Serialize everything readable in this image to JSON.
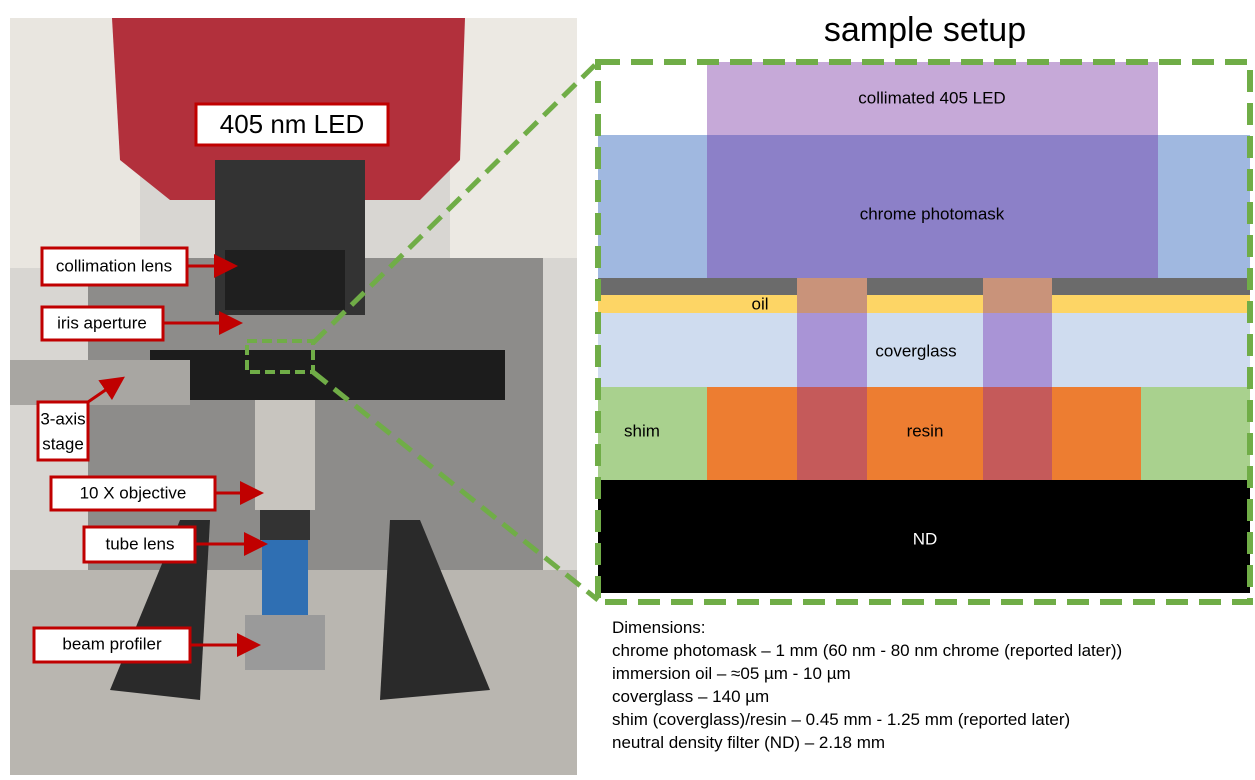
{
  "title": "sample setup",
  "photo_labels": {
    "led": "405 nm LED",
    "collimation": "collimation lens",
    "iris": "iris aperture",
    "stage_1": "3-axis",
    "stage_2": "stage",
    "objective": "10 X objective",
    "tube": "tube lens",
    "profiler": "beam profiler"
  },
  "layers": {
    "led": "collimated 405 LED",
    "photomask": "chrome photomask",
    "oil": "oil",
    "coverglass": "coverglass",
    "shim": "shim",
    "resin": "resin",
    "nd": "ND"
  },
  "dimensions": {
    "heading": "Dimensions:",
    "lines": [
      "chrome photomask – 1 mm (60 nm - 80 nm chrome (reported later))",
      "immersion oil – ≈05 µm - 10 µm",
      "coverglass – 140 µm",
      "shim (coverglass)/resin –  0.45 mm - 1.25 mm (reported later)",
      "neutral density filter (ND) – 2.18 mm"
    ]
  }
}
